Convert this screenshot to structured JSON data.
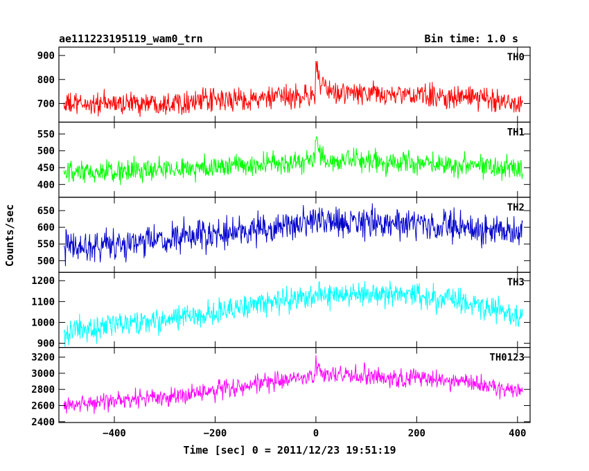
{
  "chart_data": {
    "type": "line",
    "title": "ae111223195119_wam0_trn",
    "bin_time_label": "Bin time: 1.0 s",
    "xlabel": "Time [sec] 0 = 2011/12/23 19:51:19",
    "ylabel": "Counts/sec",
    "xlim": [
      -510,
      425
    ],
    "xticks": [
      -400,
      -200,
      0,
      200,
      400
    ],
    "xtick_labels": [
      "−400",
      "−200",
      "0",
      "200",
      "400"
    ],
    "grid": false,
    "panels": [
      {
        "name": "TH0",
        "color": "#ff0000",
        "ylim": [
          622,
          935
        ],
        "yticks": [
          700,
          800,
          900
        ],
        "ytick_labels": [
          "700",
          "800",
          "900"
        ],
        "trend": {
          "x": [
            -500,
            -300,
            -100,
            -2,
            0,
            3,
            8,
            20,
            100,
            300,
            410
          ],
          "y": [
            695,
            705,
            720,
            735,
            860,
            840,
            790,
            748,
            740,
            725,
            705
          ]
        },
        "noise": 28
      },
      {
        "name": "TH1",
        "color": "#00ff00",
        "ylim": [
          362,
          585
        ],
        "yticks": [
          400,
          450,
          500,
          550
        ],
        "ytick_labels": [
          "400",
          "450",
          "500",
          "550"
        ],
        "trend": {
          "x": [
            -500,
            -300,
            -100,
            -2,
            0,
            3,
            8,
            20,
            100,
            300,
            410
          ],
          "y": [
            430,
            445,
            460,
            470,
            545,
            520,
            490,
            468,
            468,
            460,
            450
          ]
        },
        "noise": 20
      },
      {
        "name": "TH2",
        "color": "#0000cc",
        "ylim": [
          465,
          690
        ],
        "yticks": [
          500,
          550,
          600,
          650
        ],
        "ytick_labels": [
          "500",
          "550",
          "600",
          "650"
        ],
        "trend": {
          "x": [
            -500,
            -300,
            -100,
            0,
            100,
            300,
            410
          ],
          "y": [
            540,
            560,
            595,
            615,
            615,
            600,
            580
          ]
        },
        "noise": 27
      },
      {
        "name": "TH3",
        "color": "#00ffff",
        "ylim": [
          880,
          1240
        ],
        "yticks": [
          900,
          1000,
          1100,
          1200
        ],
        "ytick_labels": [
          "900",
          "1000",
          "1100",
          "1200"
        ],
        "trend": {
          "x": [
            -500,
            -300,
            -100,
            0,
            100,
            300,
            410
          ],
          "y": [
            955,
            1010,
            1090,
            1130,
            1140,
            1100,
            1030
          ]
        },
        "noise": 35
      },
      {
        "name": "TH0123",
        "color": "#ff00ff",
        "ylim": [
          2390,
          3320
        ],
        "yticks": [
          2400,
          2600,
          2800,
          3000,
          3200
        ],
        "ytick_labels": [
          "2400",
          "2600",
          "2800",
          "3000",
          "3200"
        ],
        "trend": {
          "x": [
            -500,
            -300,
            -100,
            -2,
            0,
            3,
            8,
            20,
            100,
            300,
            410
          ],
          "y": [
            2610,
            2700,
            2880,
            2950,
            3180,
            3080,
            3010,
            2980,
            2970,
            2900,
            2760
          ]
        },
        "noise": 70
      }
    ]
  }
}
